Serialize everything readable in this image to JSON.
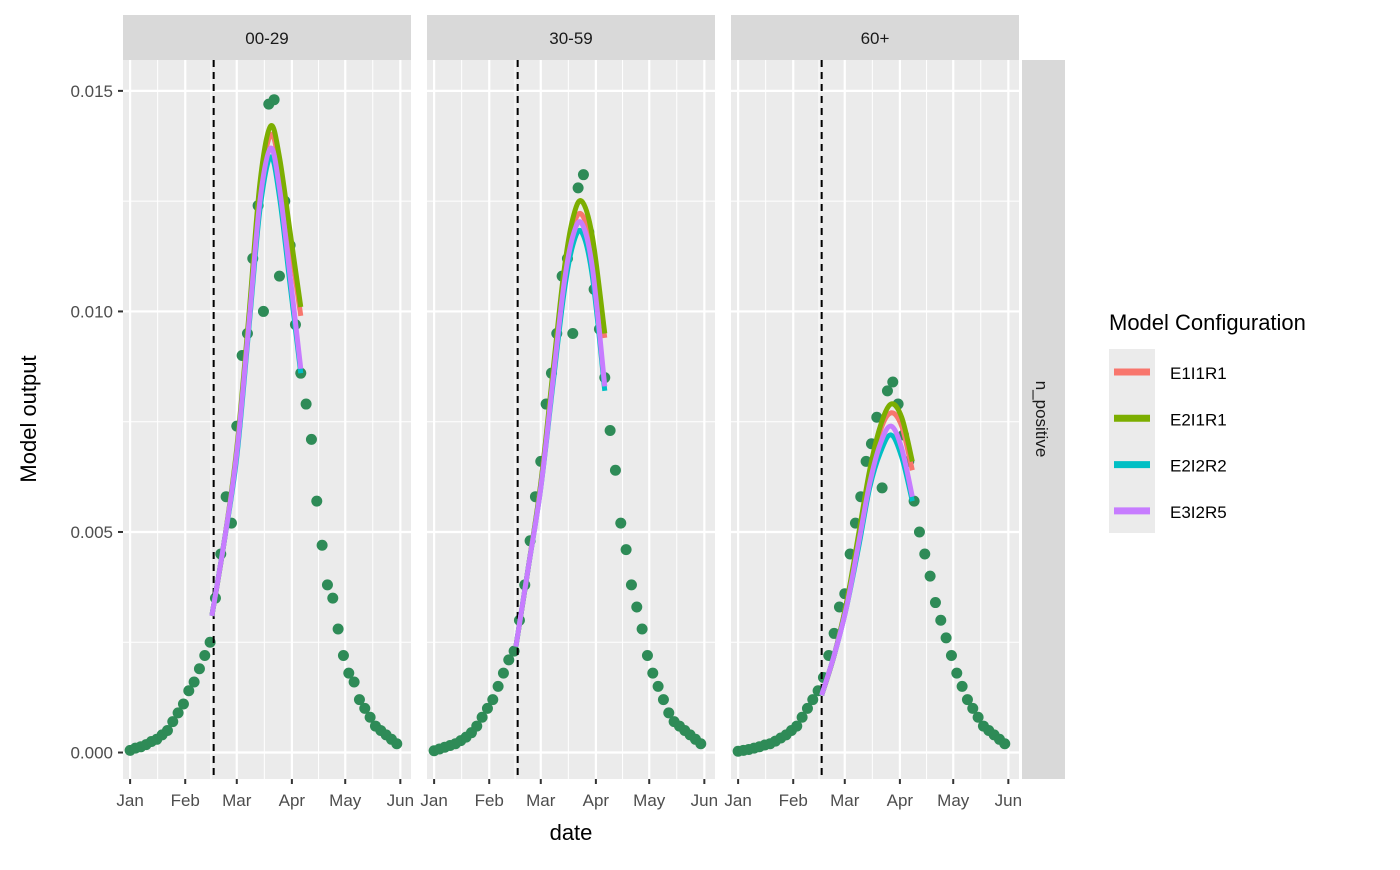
{
  "chart_data": {
    "type": "scatter",
    "xlabel": "date",
    "ylabel": "Model output",
    "ylim": [
      -0.0006,
      0.0157
    ],
    "xlim": [
      "2019-12-28",
      "2020-06-07"
    ],
    "y_ticks": [
      0.0,
      0.005,
      0.01,
      0.015
    ],
    "y_tick_labels": [
      "0.000",
      "0.005",
      "0.010",
      "0.015"
    ],
    "x_ticks": [
      "2020-01-01",
      "2020-02-01",
      "2020-03-01",
      "2020-04-01",
      "2020-05-01",
      "2020-06-01"
    ],
    "x_tick_labels": [
      "Jan",
      "Feb",
      "Mar",
      "Apr",
      "May",
      "Jun"
    ],
    "grid": true,
    "row_strip": "n_positive",
    "vline_date": "2020-02-17",
    "point_color": "#2E8B57",
    "legend": {
      "title": "Model Configuration",
      "placement": "right",
      "entries": [
        {
          "name": "E1I1R1",
          "color": "#F8766D"
        },
        {
          "name": "E2I1R1",
          "color": "#7CAE00"
        },
        {
          "name": "E2I2R2",
          "color": "#00BFC4"
        },
        {
          "name": "E3I2R5",
          "color": "#C77CFF"
        }
      ]
    },
    "obs_dates": [
      "2020-01-01",
      "2020-01-04",
      "2020-01-07",
      "2020-01-10",
      "2020-01-13",
      "2020-01-16",
      "2020-01-19",
      "2020-01-22",
      "2020-01-25",
      "2020-01-28",
      "2020-01-31",
      "2020-02-03",
      "2020-02-06",
      "2020-02-09",
      "2020-02-12",
      "2020-02-15",
      "2020-02-18",
      "2020-02-21",
      "2020-02-24",
      "2020-02-27",
      "2020-03-01",
      "2020-03-04",
      "2020-03-07",
      "2020-03-10",
      "2020-03-13",
      "2020-03-16",
      "2020-03-19",
      "2020-03-22",
      "2020-03-25",
      "2020-03-28",
      "2020-03-31",
      "2020-04-03",
      "2020-04-06",
      "2020-04-09",
      "2020-04-12",
      "2020-04-15",
      "2020-04-18",
      "2020-04-21",
      "2020-04-24",
      "2020-04-27",
      "2020-04-30",
      "2020-05-03",
      "2020-05-06",
      "2020-05-09",
      "2020-05-12",
      "2020-05-15",
      "2020-05-18",
      "2020-05-21",
      "2020-05-24",
      "2020-05-27",
      "2020-05-30"
    ],
    "panels": [
      {
        "strip": "00-29",
        "observed": [
          5e-05,
          0.0001,
          0.00013,
          0.00018,
          0.00025,
          0.0003,
          0.0004,
          0.0005,
          0.0007,
          0.0009,
          0.0011,
          0.0014,
          0.0016,
          0.0019,
          0.0022,
          0.0025,
          0.0035,
          0.0045,
          0.0058,
          0.0052,
          0.0074,
          0.009,
          0.0095,
          0.0112,
          0.0124,
          0.01,
          0.0147,
          0.0148,
          0.0108,
          0.0125,
          0.0115,
          0.0097,
          0.0086,
          0.0079,
          0.0071,
          0.0057,
          0.0047,
          0.0038,
          0.0035,
          0.0028,
          0.0022,
          0.0018,
          0.0016,
          0.0012,
          0.001,
          0.0008,
          0.0006,
          0.0005,
          0.0004,
          0.0003,
          0.0002
        ],
        "model_dates": [
          "2020-02-16",
          "2020-02-23",
          "2020-03-01",
          "2020-03-08",
          "2020-03-14",
          "2020-03-20",
          "2020-03-25",
          "2020-03-31",
          "2020-04-06"
        ],
        "series": [
          {
            "name": "E1I1R1",
            "values": [
              0.0031,
              0.0048,
              0.0068,
              0.0099,
              0.0127,
              0.014,
              0.0133,
              0.0116,
              0.0099
            ]
          },
          {
            "name": "E2I1R1",
            "values": [
              0.0031,
              0.0048,
              0.0069,
              0.01,
              0.0129,
              0.0142,
              0.0135,
              0.0118,
              0.0101
            ]
          },
          {
            "name": "E2I2R2",
            "values": [
              0.0031,
              0.0048,
              0.0067,
              0.0097,
              0.0123,
              0.0135,
              0.0126,
              0.0106,
              0.0086
            ]
          },
          {
            "name": "E3I2R5",
            "values": [
              0.0031,
              0.0048,
              0.0068,
              0.0098,
              0.0125,
              0.0137,
              0.0128,
              0.0108,
              0.0087
            ]
          }
        ]
      },
      {
        "strip": "30-59",
        "observed": [
          4e-05,
          8e-05,
          0.00012,
          0.00016,
          0.0002,
          0.00027,
          0.00035,
          0.00045,
          0.0006,
          0.0008,
          0.001,
          0.0012,
          0.0015,
          0.0018,
          0.0021,
          0.0023,
          0.003,
          0.0038,
          0.0048,
          0.0058,
          0.0066,
          0.0079,
          0.0086,
          0.0095,
          0.0108,
          0.0112,
          0.0095,
          0.0128,
          0.0131,
          0.0118,
          0.0105,
          0.0096,
          0.0085,
          0.0073,
          0.0064,
          0.0052,
          0.0046,
          0.0038,
          0.0033,
          0.0028,
          0.0022,
          0.0018,
          0.0015,
          0.0012,
          0.0009,
          0.0007,
          0.0006,
          0.0005,
          0.0004,
          0.0003,
          0.0002
        ],
        "model_dates": [
          "2020-02-16",
          "2020-02-23",
          "2020-03-01",
          "2020-03-08",
          "2020-03-14",
          "2020-03-19",
          "2020-03-24",
          "2020-03-30",
          "2020-04-06"
        ],
        "series": [
          {
            "name": "E1I1R1",
            "values": [
              0.0024,
              0.0042,
              0.0061,
              0.0086,
              0.0108,
              0.0119,
              0.0122,
              0.0114,
              0.0094
            ]
          },
          {
            "name": "E2I1R1",
            "values": [
              0.0024,
              0.0042,
              0.0061,
              0.0087,
              0.0109,
              0.0121,
              0.0125,
              0.0117,
              0.0095
            ]
          },
          {
            "name": "E2I2R2",
            "values": [
              0.0024,
              0.0042,
              0.006,
              0.0084,
              0.0104,
              0.0115,
              0.0118,
              0.0108,
              0.0082
            ]
          },
          {
            "name": "E3I2R5",
            "values": [
              0.0024,
              0.0042,
              0.006,
              0.0085,
              0.0106,
              0.0117,
              0.012,
              0.011,
              0.0083
            ]
          }
        ]
      },
      {
        "strip": "60+",
        "observed": [
          3e-05,
          5e-05,
          7e-05,
          0.0001,
          0.00013,
          0.00017,
          0.0002,
          0.00026,
          0.00033,
          0.0004,
          0.0005,
          0.0006,
          0.0008,
          0.001,
          0.0012,
          0.0014,
          0.0017,
          0.0022,
          0.0027,
          0.0033,
          0.0036,
          0.0045,
          0.0052,
          0.0058,
          0.0066,
          0.007,
          0.0076,
          0.006,
          0.0082,
          0.0084,
          0.0079,
          0.0072,
          0.0066,
          0.0057,
          0.005,
          0.0045,
          0.004,
          0.0034,
          0.003,
          0.0026,
          0.0022,
          0.0018,
          0.0015,
          0.0012,
          0.001,
          0.0008,
          0.0006,
          0.0005,
          0.0004,
          0.0003,
          0.0002
        ],
        "model_dates": [
          "2020-02-17",
          "2020-02-24",
          "2020-03-02",
          "2020-03-09",
          "2020-03-15",
          "2020-03-21",
          "2020-03-27",
          "2020-04-02",
          "2020-04-08"
        ],
        "series": [
          {
            "name": "E1I1R1",
            "values": [
              0.0013,
              0.0022,
              0.0034,
              0.0049,
              0.0063,
              0.0073,
              0.0077,
              0.0074,
              0.0064
            ]
          },
          {
            "name": "E2I1R1",
            "values": [
              0.0013,
              0.0022,
              0.0034,
              0.005,
              0.0064,
              0.0074,
              0.0079,
              0.0076,
              0.0066
            ]
          },
          {
            "name": "E2I2R2",
            "values": [
              0.0013,
              0.0022,
              0.0033,
              0.0047,
              0.006,
              0.0068,
              0.0072,
              0.0067,
              0.0057
            ]
          },
          {
            "name": "E3I2R5",
            "values": [
              0.0013,
              0.0022,
              0.0033,
              0.0048,
              0.0061,
              0.007,
              0.0074,
              0.0069,
              0.0058
            ]
          }
        ]
      }
    ]
  }
}
